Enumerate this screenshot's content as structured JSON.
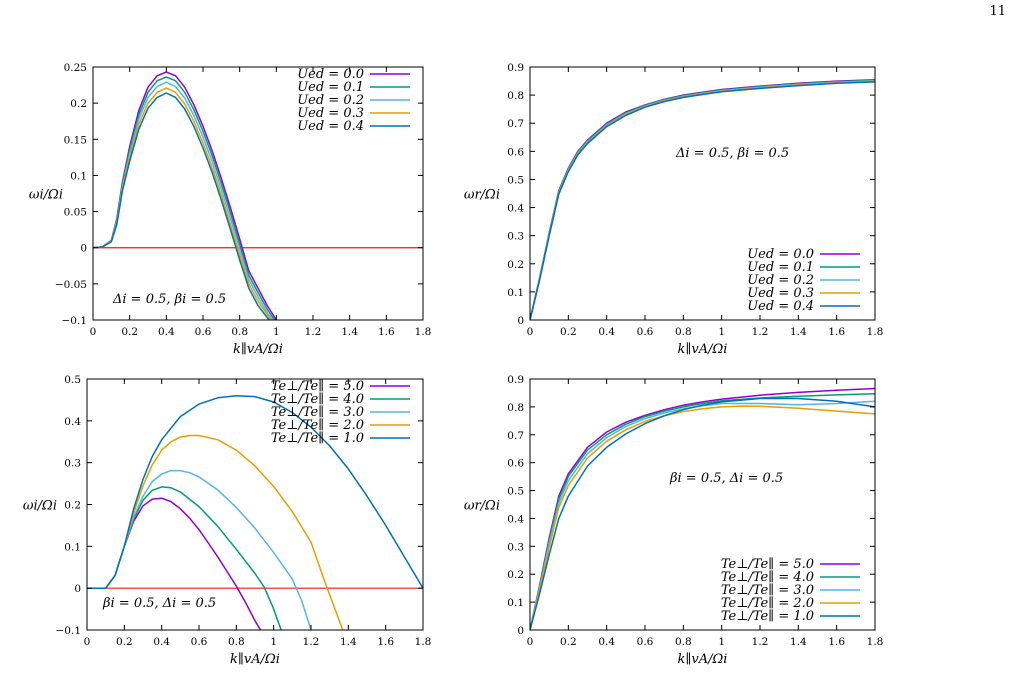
{
  "page": {
    "number": "11"
  },
  "colors": {
    "s0": "#9400d3",
    "s1": "#009e73",
    "s2": "#56b4e9",
    "s3": "#e69f00",
    "s4": "#0072b2",
    "zero_line": "#e51e10"
  },
  "chart_data": [
    {
      "type": "line",
      "xlabel": "k∥vA/Ωi",
      "ylabel": "ωi/Ωi",
      "xlim": [
        0,
        1.8
      ],
      "ylim": [
        -0.1,
        0.25
      ],
      "xticks": [
        "0",
        "0.2",
        "0.4",
        "0.6",
        "0.8",
        "1",
        "1.2",
        "1.4",
        "1.6",
        "1.8"
      ],
      "yticks": [
        "−0.1",
        "−0.05",
        "0",
        "0.05",
        "0.1",
        "0.15",
        "0.2",
        "0.25"
      ],
      "legend_position": "top-right",
      "annotation": "Δi = 0.5, βi = 0.5",
      "zero_line": true,
      "series": [
        {
          "name": "Ued = 0.0",
          "x": [
            0,
            0.05,
            0.1,
            0.13,
            0.16,
            0.2,
            0.25,
            0.3,
            0.35,
            0.4,
            0.45,
            0.5,
            0.55,
            0.6,
            0.65,
            0.7,
            0.75,
            0.8,
            0.85,
            0.9,
            0.95,
            1.0
          ],
          "y": [
            0,
            0.001,
            0.01,
            0.04,
            0.09,
            0.14,
            0.19,
            0.222,
            0.238,
            0.243,
            0.238,
            0.222,
            0.198,
            0.168,
            0.134,
            0.096,
            0.055,
            0.012,
            -0.032,
            -0.056,
            -0.08,
            -0.1
          ]
        },
        {
          "name": "Ued = 0.1",
          "x": [
            0,
            0.05,
            0.1,
            0.13,
            0.16,
            0.2,
            0.25,
            0.3,
            0.35,
            0.4,
            0.45,
            0.5,
            0.55,
            0.6,
            0.65,
            0.7,
            0.75,
            0.8,
            0.85,
            0.9,
            0.95,
            0.99
          ],
          "y": [
            0,
            0.001,
            0.01,
            0.038,
            0.087,
            0.135,
            0.184,
            0.215,
            0.231,
            0.236,
            0.231,
            0.215,
            0.191,
            0.161,
            0.127,
            0.089,
            0.048,
            0.005,
            -0.038,
            -0.062,
            -0.085,
            -0.1
          ]
        },
        {
          "name": "Ued = 0.2",
          "x": [
            0,
            0.05,
            0.1,
            0.13,
            0.16,
            0.2,
            0.25,
            0.3,
            0.35,
            0.4,
            0.45,
            0.5,
            0.55,
            0.6,
            0.65,
            0.7,
            0.75,
            0.8,
            0.85,
            0.9,
            0.95,
            0.98
          ],
          "y": [
            0,
            0.001,
            0.009,
            0.036,
            0.084,
            0.13,
            0.178,
            0.208,
            0.223,
            0.229,
            0.223,
            0.207,
            0.183,
            0.153,
            0.119,
            0.081,
            0.04,
            -0.002,
            -0.044,
            -0.068,
            -0.09,
            -0.1
          ]
        },
        {
          "name": "Ued = 0.3",
          "x": [
            0,
            0.05,
            0.1,
            0.13,
            0.16,
            0.2,
            0.25,
            0.3,
            0.35,
            0.4,
            0.45,
            0.5,
            0.55,
            0.6,
            0.65,
            0.7,
            0.75,
            0.8,
            0.85,
            0.9,
            0.97
          ],
          "y": [
            0,
            0.001,
            0.009,
            0.034,
            0.081,
            0.125,
            0.171,
            0.2,
            0.215,
            0.221,
            0.215,
            0.199,
            0.175,
            0.145,
            0.111,
            0.073,
            0.032,
            -0.01,
            -0.05,
            -0.074,
            -0.1
          ]
        },
        {
          "name": "Ued = 0.4",
          "x": [
            0,
            0.05,
            0.1,
            0.13,
            0.16,
            0.2,
            0.25,
            0.3,
            0.35,
            0.4,
            0.45,
            0.5,
            0.55,
            0.6,
            0.65,
            0.7,
            0.75,
            0.8,
            0.85,
            0.9,
            0.96
          ],
          "y": [
            0,
            0.001,
            0.008,
            0.032,
            0.078,
            0.12,
            0.164,
            0.193,
            0.208,
            0.214,
            0.208,
            0.192,
            0.168,
            0.138,
            0.104,
            0.066,
            0.025,
            -0.017,
            -0.056,
            -0.08,
            -0.1
          ]
        }
      ]
    },
    {
      "type": "line",
      "xlabel": "k∥vA/Ωi",
      "ylabel": "ωr/Ωi",
      "xlim": [
        0,
        1.8
      ],
      "ylim": [
        0,
        0.9
      ],
      "xticks": [
        "0",
        "0.2",
        "0.4",
        "0.6",
        "0.8",
        "1",
        "1.2",
        "1.4",
        "1.6",
        "1.8"
      ],
      "yticks": [
        "0",
        "0.1",
        "0.2",
        "0.3",
        "0.4",
        "0.5",
        "0.6",
        "0.7",
        "0.8",
        "0.9"
      ],
      "legend_position": "bottom-right",
      "annotation": "Δi = 0.5, βi = 0.5",
      "zero_line": false,
      "series": [
        {
          "name": "Ued = 0.0",
          "x": [
            0,
            0.05,
            0.1,
            0.15,
            0.2,
            0.25,
            0.3,
            0.4,
            0.5,
            0.6,
            0.7,
            0.8,
            0.9,
            1.0,
            1.2,
            1.4,
            1.6,
            1.8
          ],
          "y": [
            0,
            0.15,
            0.31,
            0.46,
            0.54,
            0.6,
            0.64,
            0.7,
            0.74,
            0.765,
            0.785,
            0.8,
            0.81,
            0.82,
            0.832,
            0.842,
            0.85,
            0.855
          ]
        },
        {
          "name": "Ued = 0.1",
          "x": [
            0,
            0.05,
            0.1,
            0.15,
            0.2,
            0.25,
            0.3,
            0.4,
            0.5,
            0.6,
            0.7,
            0.8,
            0.9,
            1.0,
            1.2,
            1.4,
            1.6,
            1.8
          ],
          "y": [
            0,
            0.148,
            0.308,
            0.457,
            0.537,
            0.597,
            0.637,
            0.697,
            0.737,
            0.763,
            0.783,
            0.798,
            0.808,
            0.818,
            0.83,
            0.84,
            0.848,
            0.853
          ]
        },
        {
          "name": "Ued = 0.2",
          "x": [
            0,
            0.05,
            0.1,
            0.15,
            0.2,
            0.25,
            0.3,
            0.4,
            0.5,
            0.6,
            0.7,
            0.8,
            0.9,
            1.0,
            1.2,
            1.4,
            1.6,
            1.8
          ],
          "y": [
            0,
            0.146,
            0.305,
            0.454,
            0.534,
            0.594,
            0.634,
            0.694,
            0.734,
            0.761,
            0.781,
            0.796,
            0.806,
            0.816,
            0.828,
            0.838,
            0.846,
            0.851
          ]
        },
        {
          "name": "Ued = 0.3",
          "x": [
            0,
            0.05,
            0.1,
            0.15,
            0.2,
            0.25,
            0.3,
            0.4,
            0.5,
            0.6,
            0.7,
            0.8,
            0.9,
            1.0,
            1.2,
            1.4,
            1.6,
            1.8
          ],
          "y": [
            0,
            0.144,
            0.302,
            0.451,
            0.531,
            0.591,
            0.631,
            0.691,
            0.731,
            0.759,
            0.779,
            0.794,
            0.804,
            0.814,
            0.826,
            0.836,
            0.844,
            0.849
          ]
        },
        {
          "name": "Ued = 0.4",
          "x": [
            0,
            0.05,
            0.1,
            0.15,
            0.2,
            0.25,
            0.3,
            0.4,
            0.5,
            0.6,
            0.7,
            0.8,
            0.9,
            1.0,
            1.2,
            1.4,
            1.6,
            1.8
          ],
          "y": [
            0,
            0.142,
            0.3,
            0.448,
            0.528,
            0.588,
            0.628,
            0.688,
            0.728,
            0.757,
            0.777,
            0.792,
            0.802,
            0.812,
            0.824,
            0.834,
            0.842,
            0.847
          ]
        }
      ]
    },
    {
      "type": "line",
      "xlabel": "k∥vA/Ωi",
      "ylabel": "ωi/Ωi",
      "xlim": [
        0,
        1.8
      ],
      "ylim": [
        -0.1,
        0.5
      ],
      "xticks": [
        "0",
        "0.2",
        "0.4",
        "0.6",
        "0.8",
        "1",
        "1.2",
        "1.4",
        "1.6",
        "1.8"
      ],
      "yticks": [
        "−0.1",
        "0",
        "0.1",
        "0.2",
        "0.3",
        "0.4",
        "0.5"
      ],
      "legend_position": "top-right",
      "annotation": "βi = 0.5, Δi = 0.5",
      "zero_line": true,
      "series": [
        {
          "name": "Te⊥/Te∥ = 5.0",
          "x": [
            0,
            0.1,
            0.15,
            0.2,
            0.25,
            0.3,
            0.35,
            0.4,
            0.45,
            0.5,
            0.55,
            0.6,
            0.65,
            0.7,
            0.75,
            0.8,
            0.85,
            0.9,
            0.93
          ],
          "y": [
            0,
            0.0,
            0.03,
            0.1,
            0.16,
            0.197,
            0.213,
            0.215,
            0.207,
            0.19,
            0.167,
            0.14,
            0.108,
            0.075,
            0.04,
            0.005,
            -0.035,
            -0.078,
            -0.1
          ]
        },
        {
          "name": "Te⊥/Te∥ = 4.0",
          "x": [
            0,
            0.1,
            0.15,
            0.2,
            0.25,
            0.3,
            0.35,
            0.4,
            0.45,
            0.5,
            0.6,
            0.7,
            0.8,
            0.9,
            0.95,
            1.0,
            1.04
          ],
          "y": [
            0,
            0.0,
            0.03,
            0.1,
            0.165,
            0.21,
            0.234,
            0.242,
            0.24,
            0.23,
            0.195,
            0.148,
            0.093,
            0.035,
            0.002,
            -0.05,
            -0.1
          ]
        },
        {
          "name": "Te⊥/Te∥ = 3.0",
          "x": [
            0,
            0.1,
            0.15,
            0.2,
            0.25,
            0.3,
            0.35,
            0.4,
            0.45,
            0.5,
            0.55,
            0.6,
            0.7,
            0.8,
            0.9,
            1.0,
            1.1,
            1.15,
            1.2
          ],
          "y": [
            0,
            0.0,
            0.03,
            0.1,
            0.17,
            0.22,
            0.255,
            0.273,
            0.281,
            0.281,
            0.276,
            0.266,
            0.235,
            0.193,
            0.143,
            0.085,
            0.022,
            -0.03,
            -0.1
          ]
        },
        {
          "name": "Te⊥/Te∥ = 2.0",
          "x": [
            0,
            0.1,
            0.15,
            0.2,
            0.25,
            0.3,
            0.35,
            0.4,
            0.45,
            0.5,
            0.55,
            0.6,
            0.7,
            0.8,
            0.9,
            1.0,
            1.1,
            1.2,
            1.27,
            1.32,
            1.37
          ],
          "y": [
            0,
            0.0,
            0.03,
            0.1,
            0.18,
            0.245,
            0.295,
            0.33,
            0.35,
            0.361,
            0.365,
            0.365,
            0.355,
            0.33,
            0.292,
            0.243,
            0.183,
            0.11,
            0.02,
            -0.04,
            -0.1
          ]
        },
        {
          "name": "Te⊥/Te∥ = 1.0",
          "x": [
            0,
            0.1,
            0.15,
            0.2,
            0.25,
            0.3,
            0.35,
            0.4,
            0.5,
            0.6,
            0.7,
            0.8,
            0.9,
            1.0,
            1.1,
            1.2,
            1.3,
            1.4,
            1.5,
            1.6,
            1.7,
            1.8
          ],
          "y": [
            0,
            0.0,
            0.03,
            0.1,
            0.19,
            0.26,
            0.315,
            0.355,
            0.41,
            0.44,
            0.455,
            0.46,
            0.458,
            0.445,
            0.42,
            0.385,
            0.34,
            0.285,
            0.22,
            0.15,
            0.075,
            0.0
          ]
        }
      ]
    },
    {
      "type": "line",
      "xlabel": "k∥vA/Ωi",
      "ylabel": "ωr/Ωi",
      "xlim": [
        0,
        1.8
      ],
      "ylim": [
        0,
        0.9
      ],
      "xticks": [
        "0",
        "0.2",
        "0.4",
        "0.6",
        "0.8",
        "1",
        "1.2",
        "1.4",
        "1.6",
        "1.8"
      ],
      "yticks": [
        "0",
        "0.1",
        "0.2",
        "0.3",
        "0.4",
        "0.5",
        "0.6",
        "0.7",
        "0.8",
        "0.9"
      ],
      "legend_position": "bottom-right",
      "annotation": "βi = 0.5, Δi = 0.5",
      "zero_line": false,
      "series": [
        {
          "name": "Te⊥/Te∥ = 5.0",
          "x": [
            0,
            0.05,
            0.1,
            0.15,
            0.2,
            0.3,
            0.4,
            0.5,
            0.6,
            0.7,
            0.8,
            0.9,
            1.0,
            1.2,
            1.4,
            1.6,
            1.8
          ],
          "y": [
            0,
            0.16,
            0.33,
            0.48,
            0.56,
            0.655,
            0.71,
            0.745,
            0.77,
            0.79,
            0.806,
            0.818,
            0.828,
            0.842,
            0.852,
            0.86,
            0.866
          ]
        },
        {
          "name": "Te⊥/Te∥ = 4.0",
          "x": [
            0,
            0.05,
            0.1,
            0.15,
            0.2,
            0.3,
            0.4,
            0.5,
            0.6,
            0.7,
            0.8,
            0.9,
            1.0,
            1.2,
            1.4,
            1.6,
            1.8
          ],
          "y": [
            0,
            0.155,
            0.32,
            0.47,
            0.55,
            0.645,
            0.7,
            0.738,
            0.765,
            0.785,
            0.8,
            0.812,
            0.822,
            0.832,
            0.838,
            0.843,
            0.847
          ]
        },
        {
          "name": "Te⊥/Te∥ = 3.0",
          "x": [
            0,
            0.05,
            0.1,
            0.15,
            0.2,
            0.3,
            0.4,
            0.5,
            0.6,
            0.7,
            0.8,
            0.9,
            1.0,
            1.2,
            1.4,
            1.6,
            1.8
          ],
          "y": [
            0,
            0.15,
            0.31,
            0.455,
            0.535,
            0.632,
            0.69,
            0.73,
            0.758,
            0.778,
            0.793,
            0.804,
            0.812,
            0.812,
            0.808,
            0.812,
            0.82
          ]
        },
        {
          "name": "Te⊥/Te∥ = 2.0",
          "x": [
            0,
            0.05,
            0.1,
            0.15,
            0.2,
            0.3,
            0.4,
            0.5,
            0.6,
            0.7,
            0.8,
            0.9,
            1.0,
            1.1,
            1.2,
            1.4,
            1.6,
            1.8
          ],
          "y": [
            0,
            0.143,
            0.295,
            0.44,
            0.518,
            0.617,
            0.677,
            0.718,
            0.748,
            0.768,
            0.783,
            0.793,
            0.8,
            0.803,
            0.802,
            0.795,
            0.785,
            0.775
          ]
        },
        {
          "name": "Te⊥/Te∥ = 1.0",
          "x": [
            0,
            0.05,
            0.1,
            0.15,
            0.2,
            0.3,
            0.4,
            0.5,
            0.6,
            0.7,
            0.8,
            0.9,
            1.0,
            1.2,
            1.4,
            1.6,
            1.8
          ],
          "y": [
            0,
            0.13,
            0.27,
            0.4,
            0.48,
            0.588,
            0.655,
            0.703,
            0.74,
            0.768,
            0.79,
            0.806,
            0.818,
            0.83,
            0.83,
            0.82,
            0.8
          ]
        }
      ]
    }
  ]
}
